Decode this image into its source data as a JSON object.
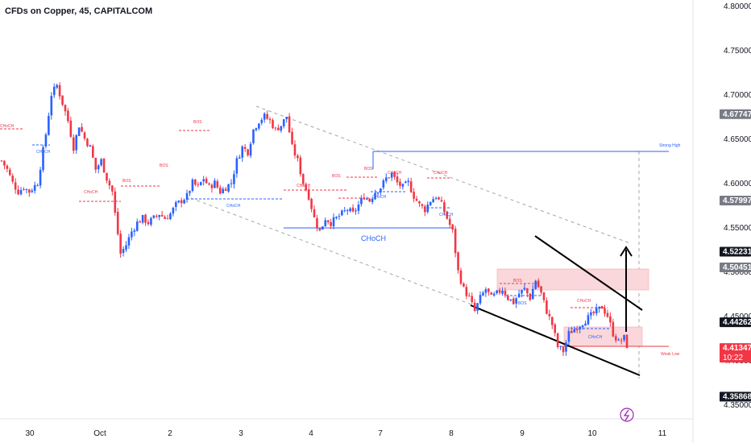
{
  "header": {
    "title": "CFDs on Copper, 45, CAPITALCOM"
  },
  "colors": {
    "up": "#2962ff",
    "down": "#f23645",
    "blue": "#2962ff",
    "red": "#f23645",
    "grey": "#787b86",
    "black": "#000000",
    "zone": "#f9d7da",
    "purple": "#9c27b0"
  },
  "icon": "lightning-bolt-icon",
  "chart_data": {
    "type": "candlestick",
    "x_ticks": [
      "30",
      "Oct",
      "2",
      "3",
      "4",
      "7",
      "8",
      "9",
      "10",
      "11"
    ],
    "y_ticks": [
      "4.80000",
      "4.75000",
      "4.70000",
      "4.65000",
      "4.60000",
      "4.55000",
      "4.50000",
      "4.45000",
      "4.40000",
      "4.35000"
    ],
    "ylim": [
      4.33,
      4.8
    ],
    "price_labels": [
      {
        "value": 4.67747,
        "text": "4.67747",
        "style": "grey"
      },
      {
        "value": 4.57997,
        "text": "4.57997",
        "style": "grey"
      },
      {
        "value": 4.52231,
        "text": "4.52231",
        "style": "dark"
      },
      {
        "value": 4.50451,
        "text": "4.50451",
        "style": "grey"
      },
      {
        "value": 4.44262,
        "text": "4.44262",
        "style": "dark"
      },
      {
        "value": 4.41347,
        "text": "4.41347",
        "sub": "10:22",
        "style": "red"
      },
      {
        "value": 4.35868,
        "text": "4.35868",
        "style": "dark"
      }
    ],
    "path_points": [
      [
        0,
        4.625
      ],
      [
        2,
        4.615
      ],
      [
        4,
        4.6
      ],
      [
        6,
        4.59
      ],
      [
        8,
        4.595
      ],
      [
        10,
        4.59
      ],
      [
        13,
        4.6
      ],
      [
        16,
        4.655
      ],
      [
        18,
        4.7
      ],
      [
        20,
        4.71
      ],
      [
        22,
        4.69
      ],
      [
        24,
        4.67
      ],
      [
        26,
        4.64
      ],
      [
        28,
        4.665
      ],
      [
        30,
        4.65
      ],
      [
        32,
        4.64
      ],
      [
        34,
        4.615
      ],
      [
        36,
        4.625
      ],
      [
        38,
        4.605
      ],
      [
        40,
        4.59
      ],
      [
        41,
        4.565
      ],
      [
        43,
        4.52
      ],
      [
        45,
        4.53
      ],
      [
        47,
        4.545
      ],
      [
        49,
        4.555
      ],
      [
        51,
        4.56
      ],
      [
        53,
        4.555
      ],
      [
        55,
        4.56
      ],
      [
        57,
        4.565
      ],
      [
        59,
        4.56
      ],
      [
        61,
        4.565
      ],
      [
        63,
        4.575
      ],
      [
        65,
        4.58
      ],
      [
        67,
        4.585
      ],
      [
        69,
        4.6
      ],
      [
        71,
        4.595
      ],
      [
        73,
        4.605
      ],
      [
        75,
        4.595
      ],
      [
        77,
        4.6
      ],
      [
        79,
        4.59
      ],
      [
        81,
        4.595
      ],
      [
        83,
        4.6
      ],
      [
        85,
        4.625
      ],
      [
        87,
        4.64
      ],
      [
        89,
        4.635
      ],
      [
        91,
        4.66
      ],
      [
        93,
        4.67
      ],
      [
        95,
        4.675
      ],
      [
        97,
        4.67
      ],
      [
        99,
        4.66
      ],
      [
        101,
        4.665
      ],
      [
        103,
        4.675
      ],
      [
        105,
        4.64
      ],
      [
        107,
        4.625
      ],
      [
        109,
        4.6
      ],
      [
        111,
        4.585
      ],
      [
        113,
        4.56
      ],
      [
        115,
        4.545
      ],
      [
        117,
        4.56
      ],
      [
        119,
        4.555
      ],
      [
        121,
        4.56
      ],
      [
        123,
        4.565
      ],
      [
        125,
        4.57
      ],
      [
        127,
        4.565
      ],
      [
        129,
        4.575
      ],
      [
        131,
        4.585
      ],
      [
        133,
        4.58
      ],
      [
        135,
        4.59
      ],
      [
        137,
        4.595
      ],
      [
        139,
        4.605
      ],
      [
        141,
        4.61
      ],
      [
        143,
        4.6
      ],
      [
        145,
        4.595
      ],
      [
        147,
        4.6
      ],
      [
        149,
        4.585
      ],
      [
        151,
        4.575
      ],
      [
        153,
        4.57
      ],
      [
        155,
        4.58
      ],
      [
        157,
        4.585
      ],
      [
        159,
        4.575
      ],
      [
        161,
        4.56
      ],
      [
        163,
        4.545
      ],
      [
        165,
        4.5
      ],
      [
        167,
        4.48
      ],
      [
        169,
        4.47
      ],
      [
        171,
        4.455
      ],
      [
        173,
        4.47
      ],
      [
        175,
        4.48
      ],
      [
        177,
        4.47
      ],
      [
        179,
        4.475
      ],
      [
        181,
        4.48
      ],
      [
        183,
        4.47
      ],
      [
        185,
        4.465
      ],
      [
        187,
        4.475
      ],
      [
        189,
        4.48
      ],
      [
        191,
        4.47
      ],
      [
        193,
        4.49
      ],
      [
        195,
        4.475
      ],
      [
        197,
        4.455
      ],
      [
        199,
        4.44
      ],
      [
        201,
        4.415
      ],
      [
        203,
        4.41
      ],
      [
        205,
        4.43
      ],
      [
        207,
        4.435
      ],
      [
        209,
        4.44
      ],
      [
        211,
        4.445
      ],
      [
        213,
        4.45
      ],
      [
        215,
        4.455
      ],
      [
        217,
        4.46
      ],
      [
        219,
        4.45
      ],
      [
        221,
        4.43
      ],
      [
        223,
        4.42
      ],
      [
        225,
        4.425
      ],
      [
        226,
        4.4135
      ]
    ],
    "texts": [
      {
        "id": "bos",
        "text": "BOS",
        "color": "red"
      },
      {
        "id": "bos-blue",
        "text": "BOS",
        "color": "blue"
      },
      {
        "id": "choch",
        "text": "CHoCH",
        "color": "red"
      },
      {
        "id": "choch-blue",
        "text": "CHoCH",
        "color": "blue"
      },
      {
        "id": "choch-big",
        "text": "CHoCH",
        "color": "blue"
      },
      {
        "id": "strong-high",
        "text": "Strong High",
        "color": "blue"
      },
      {
        "id": "weak-low",
        "text": "Weak Low",
        "color": "red"
      }
    ]
  }
}
